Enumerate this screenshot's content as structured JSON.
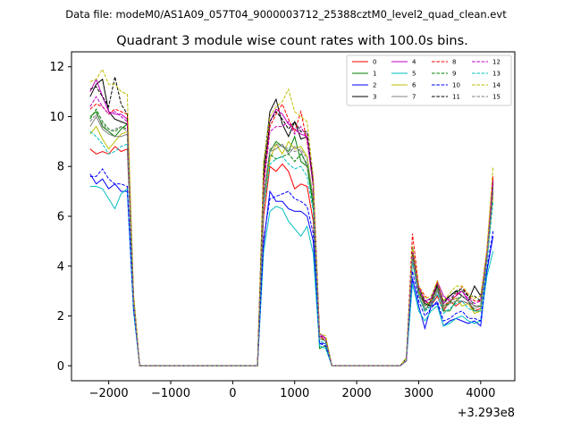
{
  "chart_data": {
    "type": "line",
    "suptitle": "Data file: modeM0/AS1A09_057T04_9000003712_25388cztM0_level2_quad_clean.evt",
    "title": "Quadrant 3 module wise count rates with 100.0s bins.",
    "xlabel": "",
    "ylabel": "",
    "x_offset_label": "+3.293e8",
    "xlim": [
      -2600,
      4550
    ],
    "ylim": [
      -0.6,
      12.6
    ],
    "xticks": [
      -2000,
      -1000,
      0,
      1000,
      2000,
      3000,
      4000
    ],
    "xtick_labels": [
      "−2000",
      "−1000",
      "0",
      "1000",
      "2000",
      "3000",
      "4000"
    ],
    "yticks": [
      0,
      2,
      4,
      6,
      8,
      10,
      12
    ],
    "ytick_labels": [
      "0",
      "2",
      "4",
      "6",
      "8",
      "10",
      "12"
    ],
    "grid": false,
    "legend_placement": "top-right",
    "legend_columns": 4,
    "x": [
      -2300,
      -2200,
      -2100,
      -2000,
      -1900,
      -1800,
      -1700,
      -1600,
      -1500,
      -1400,
      -1300,
      -1200,
      -1100,
      -1000,
      -900,
      -800,
      -700,
      -600,
      -500,
      -400,
      -300,
      -200,
      -100,
      0,
      100,
      200,
      300,
      400,
      500,
      600,
      700,
      800,
      900,
      1000,
      1100,
      1200,
      1300,
      1400,
      1500,
      1600,
      1700,
      1800,
      1900,
      2000,
      2100,
      2200,
      2300,
      2400,
      2500,
      2600,
      2700,
      2800,
      2900,
      3000,
      3100,
      3200,
      3300,
      3400,
      3500,
      3600,
      3700,
      3800,
      3900,
      4000,
      4100,
      4200
    ],
    "series": [
      {
        "name": "0",
        "color": "#ff0000",
        "dash": false,
        "values": [
          8.7,
          8.5,
          8.6,
          8.5,
          8.8,
          8.6,
          8.7,
          2.5,
          0,
          0,
          0,
          0,
          0,
          0,
          0,
          0,
          0,
          0,
          0,
          0,
          0,
          0,
          0,
          0,
          0,
          0,
          0,
          0,
          6,
          8,
          7.8,
          8.1,
          7.8,
          7.1,
          7.3,
          7.2,
          5.8,
          1.2,
          1,
          0,
          0,
          0,
          0,
          0,
          0,
          0,
          0,
          0,
          0,
          0,
          0,
          0.2,
          4.3,
          2.8,
          2.6,
          2.4,
          2.8,
          2.2,
          2.6,
          2.4,
          2.6,
          2.5,
          2.2,
          2.3,
          4.5,
          7.6
        ]
      },
      {
        "name": "1",
        "color": "#008000",
        "dash": false,
        "values": [
          10,
          10.2,
          9.6,
          9.4,
          9.2,
          9.5,
          9.7,
          2.6,
          0,
          0,
          0,
          0,
          0,
          0,
          0,
          0,
          0,
          0,
          0,
          0,
          0,
          0,
          0,
          0,
          0,
          0,
          0,
          0,
          6.8,
          8.6,
          9,
          8.8,
          8.6,
          9.2,
          8.2,
          8,
          6.4,
          0.7,
          0.8,
          0,
          0,
          0,
          0,
          0,
          0,
          0,
          0,
          0,
          0,
          0,
          0,
          0.3,
          4.2,
          2.8,
          2.2,
          2.6,
          3.2,
          2.2,
          2.2,
          2.6,
          2.8,
          2.6,
          2.2,
          2.2,
          4.2,
          7
        ]
      },
      {
        "name": "2",
        "color": "#0000ff",
        "dash": false,
        "values": [
          7.7,
          7.3,
          7.5,
          7.1,
          7.3,
          7,
          7,
          2.3,
          0,
          0,
          0,
          0,
          0,
          0,
          0,
          0,
          0,
          0,
          0,
          0,
          0,
          0,
          0,
          0,
          0,
          0,
          0,
          0,
          4.9,
          7,
          6.6,
          6.6,
          6.3,
          6.2,
          6.2,
          6,
          5,
          0.9,
          0.9,
          0,
          0,
          0,
          0,
          0,
          0,
          0,
          0,
          0,
          0,
          0,
          0,
          0.2,
          3.5,
          2.4,
          1.5,
          2.4,
          2.5,
          1.6,
          1.8,
          1.9,
          1.8,
          1.7,
          1.8,
          1.6,
          3.8,
          5.2
        ]
      },
      {
        "name": "3",
        "color": "#000000",
        "dash": false,
        "values": [
          10.8,
          11.3,
          11.5,
          10.2,
          9.9,
          9.8,
          9.7,
          2.6,
          0,
          0,
          0,
          0,
          0,
          0,
          0,
          0,
          0,
          0,
          0,
          0,
          0,
          0,
          0,
          0,
          0,
          0,
          0,
          0,
          8,
          10.2,
          10.7,
          9.7,
          9.2,
          9.8,
          9.1,
          9.2,
          7.2,
          1.3,
          1.1,
          0,
          0,
          0,
          0,
          0,
          0,
          0,
          0,
          0,
          0,
          0,
          0,
          0.2,
          4.5,
          3,
          2.5,
          2.4,
          3.3,
          2.6,
          2.8,
          3,
          2.8,
          2.6,
          3.2,
          2.8,
          4.2,
          7.4
        ]
      },
      {
        "name": "4",
        "color": "#bf00bf",
        "dash": false,
        "values": [
          11,
          11.5,
          10.8,
          10.2,
          10.1,
          10.1,
          9.9,
          2.8,
          0,
          0,
          0,
          0,
          0,
          0,
          0,
          0,
          0,
          0,
          0,
          0,
          0,
          0,
          0,
          0,
          0,
          0,
          0,
          0,
          7.5,
          9.8,
          10.3,
          10.1,
          9.7,
          9.5,
          9.3,
          9.2,
          7.5,
          1.3,
          1.1,
          0,
          0,
          0,
          0,
          0,
          0,
          0,
          0,
          0,
          0,
          0,
          0,
          0.2,
          4.6,
          3.2,
          2.6,
          2.5,
          3.4,
          2.8,
          2.6,
          2.8,
          3,
          2.6,
          2.4,
          2.4,
          4.5,
          7.5
        ]
      },
      {
        "name": "5",
        "color": "#00bfbf",
        "dash": false,
        "values": [
          7.2,
          7.2,
          7.1,
          6.7,
          6.3,
          6.9,
          7.1,
          2.2,
          0,
          0,
          0,
          0,
          0,
          0,
          0,
          0,
          0,
          0,
          0,
          0,
          0,
          0,
          0,
          0,
          0,
          0,
          0,
          0,
          4.6,
          6.2,
          6.4,
          6.3,
          5.8,
          5.5,
          5.2,
          5.6,
          4.5,
          0.8,
          0.7,
          0,
          0,
          0,
          0,
          0,
          0,
          0,
          0,
          0,
          0,
          0,
          0,
          0.2,
          3.3,
          2.2,
          1.8,
          2.2,
          2.4,
          1.6,
          1.7,
          1.9,
          2,
          1.8,
          1.7,
          1.8,
          3.6,
          4.6
        ]
      },
      {
        "name": "6",
        "color": "#bfbf00",
        "dash": false,
        "values": [
          9.3,
          9.6,
          9.1,
          8.7,
          9,
          9.3,
          9.4,
          2.6,
          0,
          0,
          0,
          0,
          0,
          0,
          0,
          0,
          0,
          0,
          0,
          0,
          0,
          0,
          0,
          0,
          0,
          0,
          0,
          0,
          6.5,
          8.3,
          8.9,
          8.5,
          9,
          8.7,
          8.8,
          8.4,
          6.7,
          1.1,
          1,
          0,
          0,
          0,
          0,
          0,
          0,
          0,
          0,
          0,
          0,
          0,
          0,
          0.3,
          4.4,
          3,
          2.4,
          2.6,
          3.1,
          2.3,
          2.6,
          2.7,
          2.4,
          2.5,
          2.1,
          2.2,
          4.2,
          6.8
        ]
      },
      {
        "name": "7",
        "color": "#808080",
        "dash": false,
        "values": [
          9.6,
          10,
          9.5,
          9.3,
          9.2,
          9.2,
          9.3,
          2.6,
          0,
          0,
          0,
          0,
          0,
          0,
          0,
          0,
          0,
          0,
          0,
          0,
          0,
          0,
          0,
          0,
          0,
          0,
          0,
          0,
          6.6,
          8.6,
          8.7,
          8.9,
          8.5,
          8.8,
          8.6,
          8,
          6.8,
          1.1,
          1,
          0,
          0,
          0,
          0,
          0,
          0,
          0,
          0,
          0,
          0,
          0,
          0,
          0.2,
          4.3,
          2.8,
          2.3,
          2.4,
          3,
          2.3,
          2.5,
          2.6,
          2.6,
          2.5,
          2.3,
          2.4,
          4.3,
          7
        ]
      },
      {
        "name": "8",
        "color": "#ff0000",
        "dash": true,
        "values": [
          10.3,
          10.5,
          10.4,
          10.1,
          10.3,
          10.2,
          10.1,
          2.8,
          0,
          0,
          0,
          0,
          0,
          0,
          0,
          0,
          0,
          0,
          0,
          0,
          0,
          0,
          0,
          0,
          0,
          0,
          0,
          0,
          7.4,
          9.6,
          10.1,
          10.5,
          9.9,
          9.4,
          10.2,
          9,
          7.3,
          1.2,
          1.1,
          0,
          0,
          0,
          0,
          0,
          0,
          0,
          0,
          0,
          0,
          0,
          0,
          0.2,
          5.3,
          3.2,
          2.8,
          2.6,
          3.4,
          2.4,
          2.6,
          2.8,
          3.2,
          2.8,
          2.6,
          2.6,
          4.6,
          7.6
        ]
      },
      {
        "name": "9",
        "color": "#008000",
        "dash": true,
        "values": [
          9.9,
          10.3,
          9.8,
          9.5,
          9.4,
          9.6,
          9.5,
          2.7,
          0,
          0,
          0,
          0,
          0,
          0,
          0,
          0,
          0,
          0,
          0,
          0,
          0,
          0,
          0,
          0,
          0,
          0,
          0,
          0,
          6.9,
          8.5,
          8.3,
          8.4,
          8.5,
          8.2,
          8.5,
          8.1,
          6.5,
          1.1,
          1,
          0,
          0,
          0,
          0,
          0,
          0,
          0,
          0,
          0,
          0,
          0,
          0,
          0.2,
          4.8,
          3,
          2.4,
          2.6,
          3.1,
          2.4,
          2.5,
          3,
          3,
          2.8,
          2.4,
          2.4,
          4.4,
          7.2
        ]
      },
      {
        "name": "10",
        "color": "#0000ff",
        "dash": true,
        "values": [
          7.6,
          7.6,
          7.9,
          7.5,
          7.3,
          7.3,
          7.2,
          2.3,
          0,
          0,
          0,
          0,
          0,
          0,
          0,
          0,
          0,
          0,
          0,
          0,
          0,
          0,
          0,
          0,
          0,
          0,
          0,
          0,
          5.1,
          6.7,
          6.8,
          6.9,
          7,
          6.7,
          6.6,
          6.4,
          5.3,
          0.9,
          0.8,
          0,
          0,
          0,
          0,
          0,
          0,
          0,
          0,
          0,
          0,
          0,
          0,
          0.2,
          3.8,
          2.6,
          2,
          2.3,
          2.6,
          1.8,
          1.9,
          2.1,
          2.2,
          1.9,
          1.9,
          1.8,
          3.9,
          5.4
        ]
      },
      {
        "name": "11",
        "color": "#000000",
        "dash": true,
        "values": [
          11.1,
          11.2,
          10.8,
          10.4,
          11.6,
          10.5,
          10.1,
          2.8,
          0,
          0,
          0,
          0,
          0,
          0,
          0,
          0,
          0,
          0,
          0,
          0,
          0,
          0,
          0,
          0,
          0,
          0,
          0,
          0,
          7.6,
          9.8,
          10.2,
          9.9,
          9.5,
          9.8,
          9.4,
          9.4,
          7.3,
          1.2,
          1.1,
          0,
          0,
          0,
          0,
          0,
          0,
          0,
          0,
          0,
          0,
          0,
          0,
          0.3,
          4.5,
          3.1,
          2.6,
          2.7,
          3.3,
          2.5,
          2.8,
          3,
          3.1,
          2.8,
          2.8,
          2.6,
          4.5,
          7.3
        ]
      },
      {
        "name": "12",
        "color": "#bf00bf",
        "dash": true,
        "values": [
          10.4,
          10.8,
          10.4,
          10.1,
          10.2,
          10,
          9.8,
          2.7,
          0,
          0,
          0,
          0,
          0,
          0,
          0,
          0,
          0,
          0,
          0,
          0,
          0,
          0,
          0,
          0,
          0,
          0,
          0,
          0,
          7.2,
          9.4,
          9.6,
          9.6,
          9.8,
          9.3,
          9.6,
          9.1,
          7.2,
          1.2,
          1.1,
          0,
          0,
          0,
          0,
          0,
          0,
          0,
          0,
          0,
          0,
          0,
          0,
          0.2,
          4.7,
          3.1,
          2.6,
          2.7,
          3.3,
          2.5,
          2.7,
          2.9,
          3,
          2.7,
          2.5,
          2.6,
          4.5,
          7.4
        ]
      },
      {
        "name": "13",
        "color": "#00bfbf",
        "dash": true,
        "values": [
          9.4,
          9.2,
          8.9,
          8.5,
          8.6,
          8.8,
          8.9,
          2.5,
          0,
          0,
          0,
          0,
          0,
          0,
          0,
          0,
          0,
          0,
          0,
          0,
          0,
          0,
          0,
          0,
          0,
          0,
          0,
          0,
          6.4,
          8.1,
          8.3,
          8.4,
          8.1,
          7.9,
          8,
          7.6,
          6.2,
          1,
          0.9,
          0,
          0,
          0,
          0,
          0,
          0,
          0,
          0,
          0,
          0,
          0,
          0,
          0.2,
          4.2,
          2.8,
          2.2,
          2.4,
          2.9,
          2.1,
          2.3,
          2.5,
          2.6,
          2.3,
          2.2,
          2.2,
          4.1,
          6.6
        ]
      },
      {
        "name": "14",
        "color": "#bfbf00",
        "dash": true,
        "values": [
          11.4,
          11.5,
          11.9,
          11.3,
          11.3,
          11,
          10.9,
          2.9,
          0,
          0,
          0,
          0,
          0,
          0,
          0,
          0,
          0,
          0,
          0,
          0,
          0,
          0,
          0,
          0,
          0,
          0,
          0,
          0,
          8.2,
          10,
          10.4,
          10.6,
          11.1,
          10.2,
          10,
          9.8,
          7.6,
          1.3,
          1.2,
          0,
          0,
          0,
          0,
          0,
          0,
          0,
          0,
          0,
          0,
          0,
          0,
          0.3,
          4.8,
          3.2,
          2.7,
          2.8,
          3.4,
          2.6,
          2.9,
          3.2,
          3.2,
          2.9,
          2.7,
          2.8,
          4.7,
          8
        ]
      },
      {
        "name": "15",
        "color": "#808080",
        "dash": true,
        "values": [
          9.8,
          10.1,
          9.7,
          9.4,
          9.5,
          9.6,
          9.4,
          2.6,
          0,
          0,
          0,
          0,
          0,
          0,
          0,
          0,
          0,
          0,
          0,
          0,
          0,
          0,
          0,
          0,
          0,
          0,
          0,
          0,
          6.8,
          8.7,
          8.9,
          8.8,
          8.7,
          8.6,
          8.7,
          8.3,
          6.7,
          1.1,
          1,
          0,
          0,
          0,
          0,
          0,
          0,
          0,
          0,
          0,
          0,
          0,
          0,
          0.2,
          4.4,
          2.9,
          2.4,
          2.5,
          3.1,
          2.4,
          2.6,
          2.7,
          2.8,
          2.6,
          2.4,
          2.4,
          4.3,
          7.1
        ]
      }
    ]
  }
}
